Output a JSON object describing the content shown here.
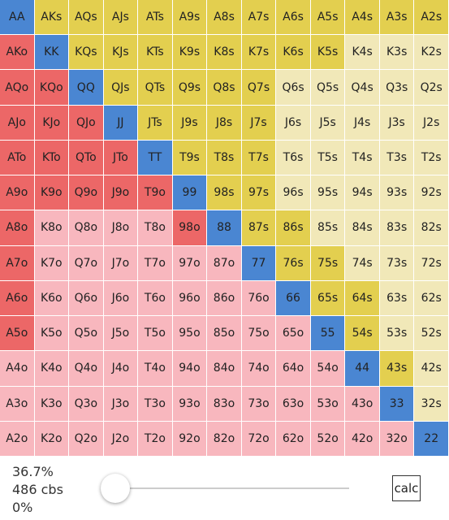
{
  "grid": {
    "colors": {
      "pair": "#4a86d2",
      "suited_selected": "#e3cf4f",
      "suited_unselected": "#f1e8b8",
      "offsuit_selected": "#ec6767",
      "offsuit_unselected": "#f8b7be"
    },
    "rows": [
      {
        "cells": [
          "AA",
          "AKs",
          "AQs",
          "AJs",
          "ATs",
          "A9s",
          "A8s",
          "A7s",
          "A6s",
          "A5s",
          "A4s",
          "A3s",
          "A2s"
        ],
        "selected": [
          true,
          true,
          true,
          true,
          true,
          true,
          true,
          true,
          true,
          true,
          true,
          true,
          true
        ]
      },
      {
        "cells": [
          "AKo",
          "KK",
          "KQs",
          "KJs",
          "KTs",
          "K9s",
          "K8s",
          "K7s",
          "K6s",
          "K5s",
          "K4s",
          "K3s",
          "K2s"
        ],
        "selected": [
          true,
          true,
          true,
          true,
          true,
          true,
          true,
          true,
          true,
          true,
          false,
          false,
          false
        ]
      },
      {
        "cells": [
          "AQo",
          "KQo",
          "QQ",
          "QJs",
          "QTs",
          "Q9s",
          "Q8s",
          "Q7s",
          "Q6s",
          "Q5s",
          "Q4s",
          "Q3s",
          "Q2s"
        ],
        "selected": [
          true,
          true,
          true,
          true,
          true,
          true,
          true,
          true,
          false,
          false,
          false,
          false,
          false
        ]
      },
      {
        "cells": [
          "AJo",
          "KJo",
          "QJo",
          "JJ",
          "JTs",
          "J9s",
          "J8s",
          "J7s",
          "J6s",
          "J5s",
          "J4s",
          "J3s",
          "J2s"
        ],
        "selected": [
          true,
          true,
          true,
          true,
          true,
          true,
          true,
          true,
          false,
          false,
          false,
          false,
          false
        ]
      },
      {
        "cells": [
          "ATo",
          "KTo",
          "QTo",
          "JTo",
          "TT",
          "T9s",
          "T8s",
          "T7s",
          "T6s",
          "T5s",
          "T4s",
          "T3s",
          "T2s"
        ],
        "selected": [
          true,
          true,
          true,
          true,
          true,
          true,
          true,
          true,
          false,
          false,
          false,
          false,
          false
        ]
      },
      {
        "cells": [
          "A9o",
          "K9o",
          "Q9o",
          "J9o",
          "T9o",
          "99",
          "98s",
          "97s",
          "96s",
          "95s",
          "94s",
          "93s",
          "92s"
        ],
        "selected": [
          true,
          true,
          true,
          true,
          true,
          true,
          true,
          true,
          false,
          false,
          false,
          false,
          false
        ]
      },
      {
        "cells": [
          "A8o",
          "K8o",
          "Q8o",
          "J8o",
          "T8o",
          "98o",
          "88",
          "87s",
          "86s",
          "85s",
          "84s",
          "83s",
          "82s"
        ],
        "selected": [
          true,
          false,
          false,
          false,
          false,
          true,
          true,
          true,
          true,
          false,
          false,
          false,
          false
        ]
      },
      {
        "cells": [
          "A7o",
          "K7o",
          "Q7o",
          "J7o",
          "T7o",
          "97o",
          "87o",
          "77",
          "76s",
          "75s",
          "74s",
          "73s",
          "72s"
        ],
        "selected": [
          true,
          false,
          false,
          false,
          false,
          false,
          false,
          true,
          true,
          true,
          false,
          false,
          false
        ]
      },
      {
        "cells": [
          "A6o",
          "K6o",
          "Q6o",
          "J6o",
          "T6o",
          "96o",
          "86o",
          "76o",
          "66",
          "65s",
          "64s",
          "63s",
          "62s"
        ],
        "selected": [
          true,
          false,
          false,
          false,
          false,
          false,
          false,
          false,
          true,
          true,
          true,
          false,
          false
        ]
      },
      {
        "cells": [
          "A5o",
          "K5o",
          "Q5o",
          "J5o",
          "T5o",
          "95o",
          "85o",
          "75o",
          "65o",
          "55",
          "54s",
          "53s",
          "52s"
        ],
        "selected": [
          true,
          false,
          false,
          false,
          false,
          false,
          false,
          false,
          false,
          true,
          true,
          false,
          false
        ]
      },
      {
        "cells": [
          "A4o",
          "K4o",
          "Q4o",
          "J4o",
          "T4o",
          "94o",
          "84o",
          "74o",
          "64o",
          "54o",
          "44",
          "43s",
          "42s"
        ],
        "selected": [
          false,
          false,
          false,
          false,
          false,
          false,
          false,
          false,
          false,
          false,
          true,
          true,
          false
        ]
      },
      {
        "cells": [
          "A3o",
          "K3o",
          "Q3o",
          "J3o",
          "T3o",
          "93o",
          "83o",
          "73o",
          "63o",
          "53o",
          "43o",
          "33",
          "32s"
        ],
        "selected": [
          false,
          false,
          false,
          false,
          false,
          false,
          false,
          false,
          false,
          false,
          false,
          true,
          false
        ]
      },
      {
        "cells": [
          "A2o",
          "K2o",
          "Q2o",
          "J2o",
          "T2o",
          "92o",
          "82o",
          "72o",
          "62o",
          "52o",
          "42o",
          "32o",
          "22"
        ],
        "selected": [
          false,
          false,
          false,
          false,
          false,
          false,
          false,
          false,
          false,
          false,
          false,
          false,
          true
        ]
      }
    ]
  },
  "footer": {
    "percent": "36.7%",
    "combos": "486 cbs",
    "slider_label": "0%",
    "button": "calc"
  }
}
